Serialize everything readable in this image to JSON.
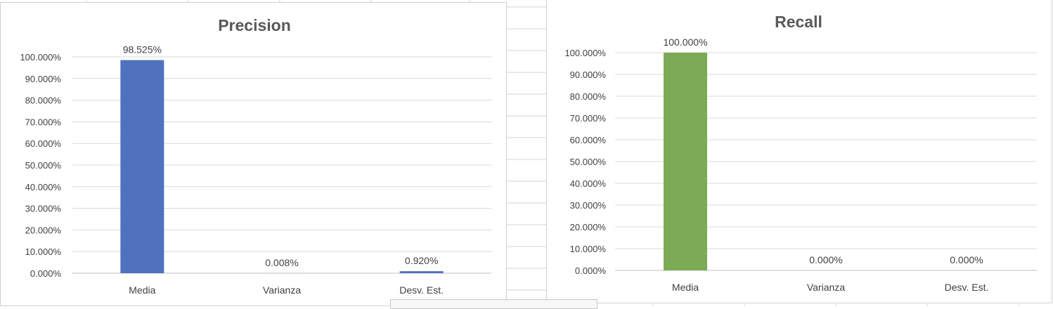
{
  "chart_data": [
    {
      "type": "bar",
      "title": "Precision",
      "categories": [
        "Media",
        "Varianza",
        "Desv. Est."
      ],
      "values": [
        98.525,
        0.008,
        0.92
      ],
      "data_labels": [
        "98.525%",
        "0.008%",
        "0.920%"
      ],
      "ylim": [
        0,
        100
      ],
      "yticks": [
        0,
        10,
        20,
        30,
        40,
        50,
        60,
        70,
        80,
        90,
        100
      ],
      "ytick_labels": [
        "0.000%",
        "10.000%",
        "20.000%",
        "30.000%",
        "40.000%",
        "50.000%",
        "60.000%",
        "70.000%",
        "80.000%",
        "90.000%",
        "100.000%"
      ],
      "bar_color": "#4f71be",
      "grid": true,
      "legend": "none"
    },
    {
      "type": "bar",
      "title": "Recall",
      "categories": [
        "Media",
        "Varianza",
        "Desv. Est."
      ],
      "values": [
        100.0,
        0.0,
        0.0
      ],
      "data_labels": [
        "100.000%",
        "0.000%",
        "0.000%"
      ],
      "ylim": [
        0,
        100
      ],
      "yticks": [
        0,
        10,
        20,
        30,
        40,
        50,
        60,
        70,
        80,
        90,
        100
      ],
      "ytick_labels": [
        "0.000%",
        "10.000%",
        "20.000%",
        "30.000%",
        "40.000%",
        "50.000%",
        "60.000%",
        "70.000%",
        "80.000%",
        "90.000%",
        "100.000%"
      ],
      "bar_color": "#7cab55",
      "grid": true,
      "legend": "none"
    }
  ]
}
